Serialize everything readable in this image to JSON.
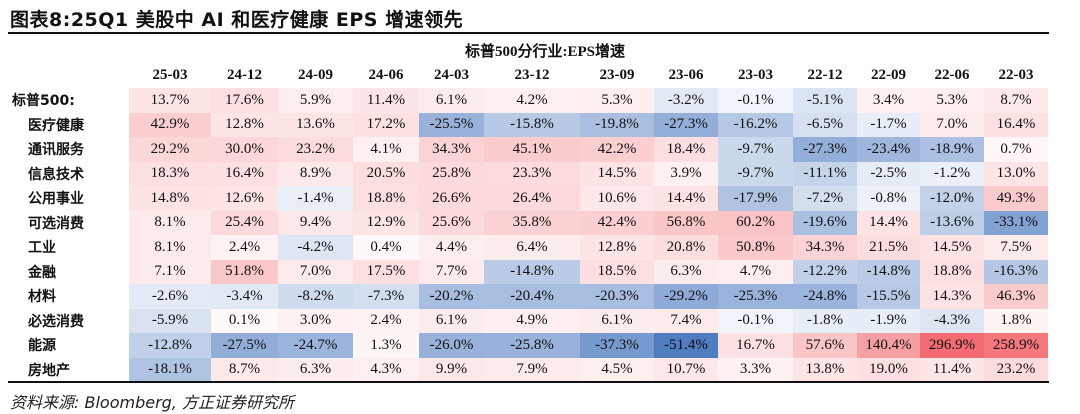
{
  "title": "图表8:25Q1 美股中 AI 和医疗健康 EPS 增速领先",
  "table": {
    "subheader": "标普500分行业:EPS增速",
    "columns": [
      "25-03",
      "24-12",
      "24-09",
      "24-06",
      "24-03",
      "23-12",
      "23-09",
      "23-06",
      "23-03",
      "22-12",
      "22-09",
      "22-06",
      "22-03"
    ],
    "rows": [
      {
        "label": "标普500:",
        "values": [
          "13.7%",
          "17.6%",
          "5.9%",
          "11.4%",
          "6.1%",
          "4.2%",
          "5.3%",
          "-3.2%",
          "-0.1%",
          "-5.1%",
          "3.4%",
          "5.3%",
          "8.7%"
        ]
      },
      {
        "label": "医疗健康",
        "values": [
          "42.9%",
          "12.8%",
          "13.6%",
          "17.2%",
          "-25.5%",
          "-15.8%",
          "-19.8%",
          "-27.3%",
          "-16.2%",
          "-6.5%",
          "-1.7%",
          "7.0%",
          "16.4%"
        ]
      },
      {
        "label": "通讯服务",
        "values": [
          "29.2%",
          "30.0%",
          "23.2%",
          "4.1%",
          "34.3%",
          "45.1%",
          "42.2%",
          "18.4%",
          "-9.7%",
          "-27.3%",
          "-23.4%",
          "-18.9%",
          "0.7%"
        ]
      },
      {
        "label": "信息技术",
        "values": [
          "18.3%",
          "16.4%",
          "8.9%",
          "20.5%",
          "25.8%",
          "23.3%",
          "14.5%",
          "3.9%",
          "-9.7%",
          "-11.1%",
          "-2.5%",
          "-1.2%",
          "13.0%"
        ]
      },
      {
        "label": "公用事业",
        "values": [
          "14.8%",
          "12.6%",
          "-1.4%",
          "18.8%",
          "26.6%",
          "26.4%",
          "10.6%",
          "14.4%",
          "-17.9%",
          "-7.2%",
          "-0.8%",
          "-12.0%",
          "49.3%"
        ]
      },
      {
        "label": "可选消费",
        "values": [
          "8.1%",
          "25.4%",
          "9.4%",
          "12.9%",
          "25.6%",
          "35.8%",
          "42.4%",
          "56.8%",
          "60.2%",
          "-19.6%",
          "14.4%",
          "-13.6%",
          "-33.1%"
        ]
      },
      {
        "label": "工业",
        "values": [
          "8.1%",
          "2.4%",
          "-4.2%",
          "0.4%",
          "4.4%",
          "6.4%",
          "12.8%",
          "20.8%",
          "50.8%",
          "34.3%",
          "21.5%",
          "14.5%",
          "7.5%"
        ]
      },
      {
        "label": "金融",
        "values": [
          "7.1%",
          "51.8%",
          "7.0%",
          "17.5%",
          "7.7%",
          "-14.8%",
          "18.5%",
          "6.3%",
          "4.7%",
          "-12.2%",
          "-14.8%",
          "18.8%",
          "-16.3%"
        ]
      },
      {
        "label": "材料",
        "values": [
          "-2.6%",
          "-3.4%",
          "-8.2%",
          "-7.3%",
          "-20.2%",
          "-20.4%",
          "-20.3%",
          "-29.2%",
          "-25.3%",
          "-24.8%",
          "-15.5%",
          "14.3%",
          "46.3%"
        ]
      },
      {
        "label": "必选消费",
        "values": [
          "-5.9%",
          "0.1%",
          "3.0%",
          "2.4%",
          "6.1%",
          "4.9%",
          "6.1%",
          "7.4%",
          "-0.1%",
          "-1.8%",
          "-1.9%",
          "-4.3%",
          "1.8%"
        ]
      },
      {
        "label": "能源",
        "values": [
          "-12.8%",
          "-27.5%",
          "-24.7%",
          "1.3%",
          "-26.0%",
          "-25.8%",
          "-37.3%",
          "-51.4%",
          "16.7%",
          "57.6%",
          "140.4%",
          "296.9%",
          "258.9%"
        ]
      },
      {
        "label": "房地产",
        "values": [
          "-18.1%",
          "8.7%",
          "6.3%",
          "4.3%",
          "9.9%",
          "7.9%",
          "4.5%",
          "10.7%",
          "3.3%",
          "13.8%",
          "19.0%",
          "11.4%",
          "23.2%"
        ]
      }
    ]
  },
  "colors": {
    "negative": "#5580c2",
    "positive": "#f26166",
    "neutral": "#ffffff"
  },
  "source": "资料来源: Bloomberg, 方正证券研究所"
}
